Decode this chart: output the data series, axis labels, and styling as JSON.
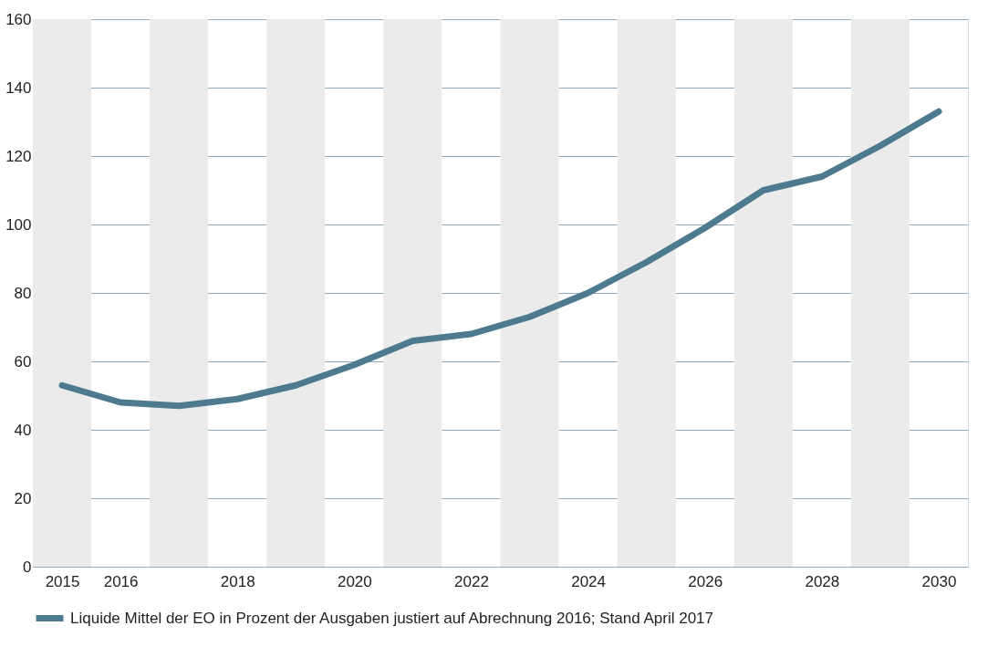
{
  "chart_data": {
    "type": "line",
    "x": [
      2015,
      2016,
      2017,
      2018,
      2019,
      2020,
      2021,
      2022,
      2023,
      2024,
      2025,
      2026,
      2027,
      2028,
      2029,
      2030
    ],
    "series": [
      {
        "name": "Liquide Mittel der EO in Prozent der Ausgaben justiert auf Abrechnung 2016; Stand April 2017",
        "color": "#4d7a8f",
        "values": [
          53,
          48,
          47,
          49,
          53,
          59,
          66,
          68,
          73,
          80,
          89,
          99,
          110,
          114,
          123,
          133
        ]
      }
    ],
    "xlim": [
      2014.5,
      2030.5
    ],
    "xticks": [
      2015,
      2016,
      2018,
      2020,
      2022,
      2024,
      2026,
      2028,
      2030
    ],
    "ylim": [
      0,
      160
    ],
    "yticks": [
      0,
      20,
      40,
      60,
      80,
      100,
      120,
      140,
      160
    ],
    "bands": [
      {
        "axis": "x",
        "from": 2014.5,
        "to": 2015.5,
        "color": "#ebebeb"
      },
      {
        "axis": "x",
        "from": 2016.5,
        "to": 2017.5,
        "color": "#ebebeb"
      },
      {
        "axis": "x",
        "from": 2018.5,
        "to": 2019.5,
        "color": "#ebebeb"
      },
      {
        "axis": "x",
        "from": 2020.5,
        "to": 2021.5,
        "color": "#ebebeb"
      },
      {
        "axis": "x",
        "from": 2022.5,
        "to": 2023.5,
        "color": "#ebebeb"
      },
      {
        "axis": "x",
        "from": 2024.5,
        "to": 2025.5,
        "color": "#ebebeb"
      },
      {
        "axis": "x",
        "from": 2026.5,
        "to": 2027.5,
        "color": "#ebebeb"
      },
      {
        "axis": "x",
        "from": 2028.5,
        "to": 2029.5,
        "color": "#ebebeb"
      }
    ],
    "grid": "y",
    "legend": "bottom",
    "marker": "none",
    "line_style": "solid"
  }
}
